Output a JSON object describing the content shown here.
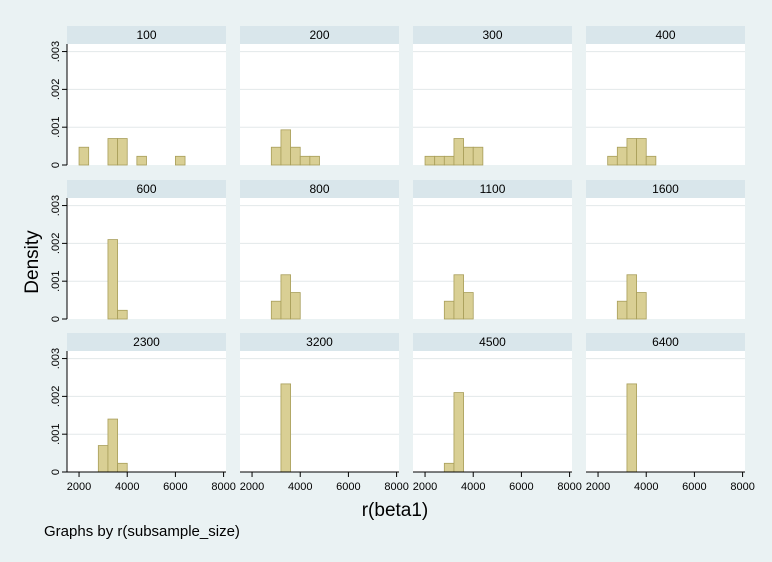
{
  "chart_data": {
    "type": "bar",
    "subtype": "histogram-small-multiples",
    "ylabel": "Density",
    "xlabel": "r(beta1)",
    "note": "Graphs by r(subsample_size)",
    "xlim": [
      1500,
      8100
    ],
    "ylim": [
      0,
      0.0032
    ],
    "xticks": [
      "2000",
      "4000",
      "6000",
      "8000"
    ],
    "yticks": [
      "0",
      ".001",
      ".002",
      ".003"
    ],
    "colors": {
      "background": "#eaf2f3",
      "panel": "#ffffff",
      "strip": "#d9e6eb",
      "bar_fill": "#d9cf94",
      "bar_stroke": "#a89e5a",
      "grid": "#e3e8ea"
    },
    "panels": [
      {
        "title": "100",
        "bars": [
          [
            2000,
            2400,
            0.00047
          ],
          [
            3200,
            3600,
            0.0007
          ],
          [
            3600,
            4000,
            0.0007
          ],
          [
            4400,
            4800,
            0.00023
          ],
          [
            6000,
            6400,
            0.00023
          ]
        ]
      },
      {
        "title": "200",
        "bars": [
          [
            2800,
            3200,
            0.00047
          ],
          [
            3200,
            3600,
            0.00093
          ],
          [
            3600,
            4000,
            0.00047
          ],
          [
            4000,
            4400,
            0.00023
          ],
          [
            4400,
            4800,
            0.00023
          ]
        ]
      },
      {
        "title": "300",
        "bars": [
          [
            2000,
            2400,
            0.00023
          ],
          [
            2400,
            2800,
            0.00023
          ],
          [
            2800,
            3200,
            0.00023
          ],
          [
            3200,
            3600,
            0.0007
          ],
          [
            3600,
            4000,
            0.00047
          ],
          [
            4000,
            4400,
            0.00047
          ]
        ]
      },
      {
        "title": "400",
        "bars": [
          [
            2400,
            2800,
            0.00023
          ],
          [
            2800,
            3200,
            0.00047
          ],
          [
            3200,
            3600,
            0.0007
          ],
          [
            3600,
            4000,
            0.0007
          ],
          [
            4000,
            4400,
            0.00023
          ]
        ]
      },
      {
        "title": "600",
        "bars": [
          [
            3200,
            3600,
            0.0021
          ],
          [
            3600,
            4000,
            0.00023
          ]
        ]
      },
      {
        "title": "800",
        "bars": [
          [
            2800,
            3200,
            0.00047
          ],
          [
            3200,
            3600,
            0.00117
          ],
          [
            3600,
            4000,
            0.0007
          ]
        ]
      },
      {
        "title": "1100",
        "bars": [
          [
            2800,
            3200,
            0.00047
          ],
          [
            3200,
            3600,
            0.00117
          ],
          [
            3600,
            4000,
            0.0007
          ]
        ]
      },
      {
        "title": "1600",
        "bars": [
          [
            2800,
            3200,
            0.00047
          ],
          [
            3200,
            3600,
            0.00117
          ],
          [
            3600,
            4000,
            0.0007
          ]
        ]
      },
      {
        "title": "2300",
        "bars": [
          [
            2800,
            3200,
            0.0007
          ],
          [
            3200,
            3600,
            0.0014
          ],
          [
            3600,
            4000,
            0.00023
          ]
        ]
      },
      {
        "title": "3200",
        "bars": [
          [
            3200,
            3600,
            0.00233
          ]
        ]
      },
      {
        "title": "4500",
        "bars": [
          [
            2800,
            3200,
            0.00023
          ],
          [
            3200,
            3600,
            0.0021
          ]
        ]
      },
      {
        "title": "6400",
        "bars": [
          [
            3200,
            3600,
            0.00233
          ]
        ]
      }
    ]
  }
}
